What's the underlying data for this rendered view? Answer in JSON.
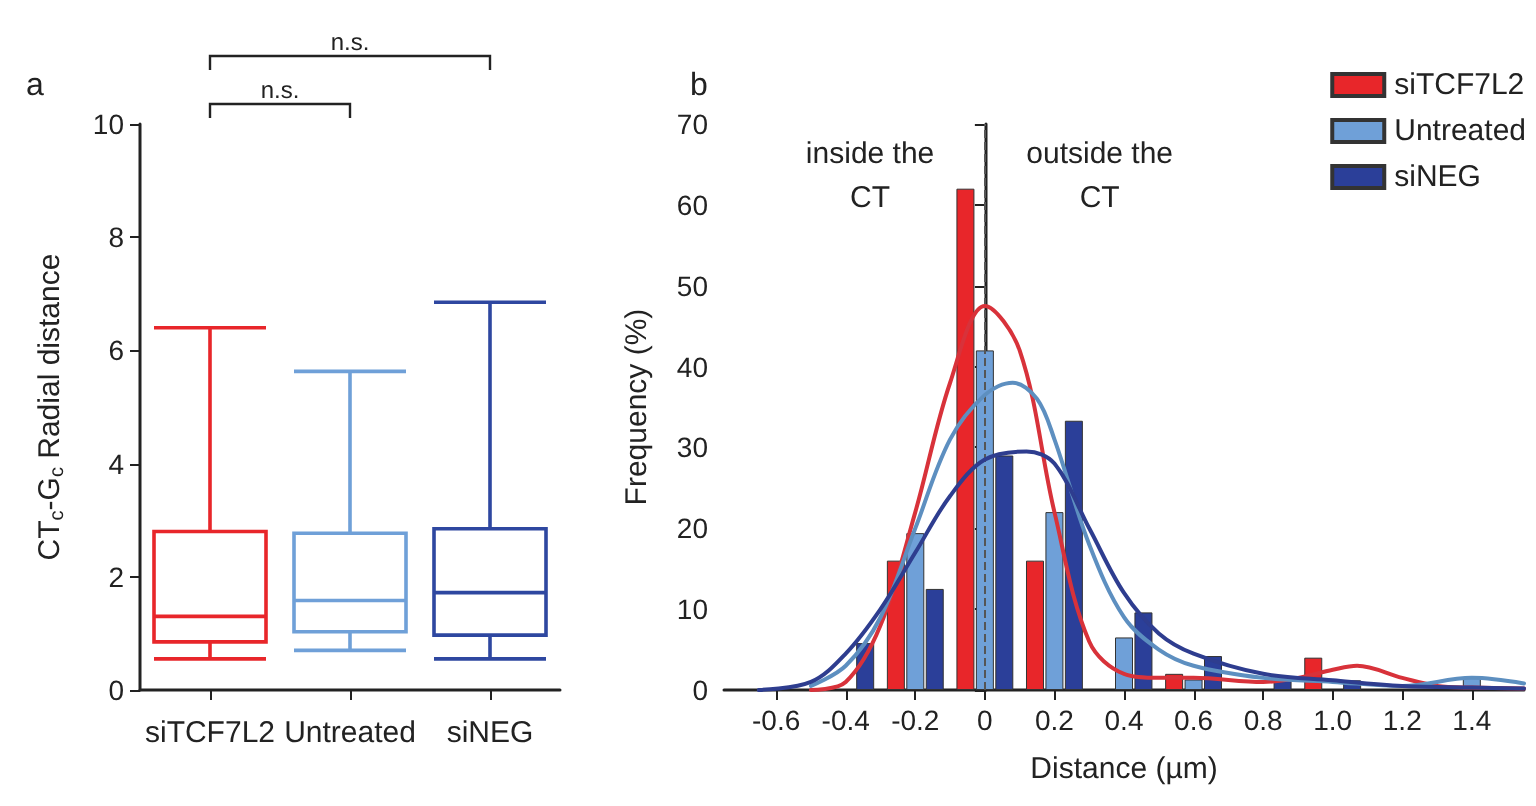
{
  "chart_data": [
    {
      "type": "box",
      "title": "a",
      "ylabel": "CT$_{c}$-G$_{c}$ Radial distance",
      "categories": [
        "siTCF7L2",
        "Untreated",
        "siNEG"
      ],
      "colors": [
        "#e8262a",
        "#6fa0d8",
        "#2e47a0"
      ],
      "boxes": [
        {
          "low": 0.55,
          "q1": 0.85,
          "median": 1.3,
          "q3": 2.8,
          "high": 6.4
        },
        {
          "low": 0.7,
          "q1": 1.03,
          "median": 1.58,
          "q3": 2.77,
          "high": 5.63
        },
        {
          "low": 0.55,
          "q1": 0.97,
          "median": 1.72,
          "q3": 2.85,
          "high": 6.85
        }
      ],
      "ylim": [
        0,
        10
      ],
      "yticks": [
        0,
        2,
        4,
        6,
        8,
        10
      ],
      "annotations": [
        "n.s.",
        "n.s."
      ],
      "grid": false,
      "legend": false
    },
    {
      "type": "bar",
      "title": "b",
      "xlabel": "Distance (µm)",
      "ylabel": "Frequency (%)",
      "xlim": [
        -0.75,
        1.55
      ],
      "xticks": [
        -0.6,
        -0.4,
        -0.2,
        0,
        0.2,
        0.4,
        0.6,
        0.8,
        {
          "value": 1,
          "label": "1.0"
        },
        1.2,
        1.4
      ],
      "ylim": [
        0,
        70
      ],
      "yticks": [
        0,
        10,
        20,
        30,
        40,
        50,
        60,
        70
      ],
      "series": [
        {
          "name": "siTCF7L2",
          "color": "#e8262a",
          "x": [
            -0.2,
            0,
            0.2,
            0.6,
            1.0
          ],
          "values": [
            16,
            62,
            16,
            2,
            4
          ]
        },
        {
          "name": "Untreated",
          "color": "#6fa0d8",
          "x": [
            -0.2,
            0,
            0.2,
            0.4,
            0.6,
            1.4
          ],
          "values": [
            19.4,
            42,
            22,
            6.5,
            1.3,
            1.5
          ]
        },
        {
          "name": "siNEG",
          "color": "#2b3f99",
          "x": [
            -0.4,
            -0.2,
            0,
            0.2,
            0.4,
            0.6,
            0.8,
            1.0
          ],
          "values": [
            5.8,
            12.5,
            29,
            33.3,
            9.6,
            4.2,
            1.2,
            1.2
          ]
        },
        {
          "type": "line",
          "color": "#d8323a",
          "x": [
            -0.5,
            -0.4,
            -0.3,
            -0.2,
            -0.1,
            0,
            0.1,
            0.2,
            0.3,
            0.4,
            0.5,
            0.6,
            0.8,
            0.9,
            1.0,
            1.07,
            1.2,
            1.3,
            1.4,
            1.55
          ],
          "values": [
            0,
            1,
            8,
            22,
            38,
            47.5,
            42,
            22,
            6,
            2,
            1.5,
            1.5,
            1,
            1.5,
            2.5,
            3,
            1.5,
            0.5,
            0.3,
            0.2
          ]
        },
        {
          "type": "line",
          "color": "#5d8fc0",
          "x": [
            -0.5,
            -0.4,
            -0.3,
            -0.2,
            -0.1,
            0,
            0.08,
            0.15,
            0.2,
            0.3,
            0.4,
            0.5,
            0.6,
            0.8,
            1.0,
            1.2,
            1.4,
            1.55
          ],
          "values": [
            0.5,
            3,
            9,
            20,
            31,
            36.5,
            38,
            36,
            31,
            18,
            9,
            5,
            3,
            1.5,
            1,
            0.5,
            1.5,
            0.8
          ]
        },
        {
          "type": "line",
          "color": "#2e3d8f",
          "x": [
            -0.65,
            -0.5,
            -0.4,
            -0.3,
            -0.2,
            -0.1,
            0,
            0.12,
            0.2,
            0.3,
            0.4,
            0.5,
            0.6,
            0.8,
            1.0,
            1.2,
            1.4,
            1.55
          ],
          "values": [
            0,
            1,
            4.5,
            10,
            17,
            24,
            28.5,
            29.5,
            28,
            20,
            12,
            7,
            4.5,
            2,
            1.2,
            0.5,
            0.3,
            0.2
          ]
        }
      ],
      "ref_lines": [
        {
          "axis": "x",
          "value": 0,
          "color": "#555555",
          "line_style": "dashed"
        }
      ],
      "annotations": [
        "inside the\nCT",
        "outside the\nCT"
      ],
      "marker": "none",
      "line_style": "solid",
      "grid": false,
      "legend": "top right"
    }
  ]
}
